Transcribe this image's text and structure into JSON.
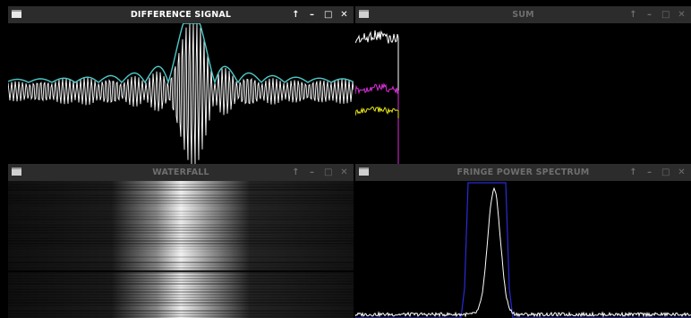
{
  "windows": {
    "difference": {
      "title": "DIFFERENCE SIGNAL",
      "active": true
    },
    "sum": {
      "title": "SUM",
      "active": false
    },
    "waterfall": {
      "title": "WATERFALL",
      "active": false
    },
    "fringe": {
      "title": "FRINGE POWER SPECTRUM",
      "active": false
    }
  },
  "controls": {
    "shade": "↑",
    "minimize": "–",
    "maximize": "□",
    "close": "✕"
  },
  "colors": {
    "titlebar": "#2c2c2c",
    "difference_signal": "#ffffff",
    "difference_envelope": "#4ec9c9",
    "sum_channel_1": "#ffffff",
    "sum_channel_2": "#d92fd9",
    "sum_channel_3": "#e6e61a",
    "spectrum_signal": "#ffffff",
    "spectrum_envelope": "#2a2ad8"
  }
}
